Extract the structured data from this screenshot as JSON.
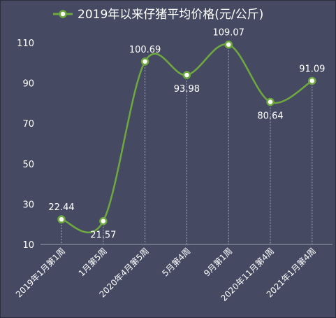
{
  "chart_data": {
    "type": "line",
    "title": "2019年以来仔猪平均价格(元/公斤)",
    "categories": [
      "2019年1月第1周",
      "1月第5周",
      "2020年4月第5周",
      "5月第4周",
      "9月第1周",
      "2020年11月第4周",
      "2021年1月第4周"
    ],
    "series": [
      {
        "name": "2019年以来仔猪平均价格(元/公斤)",
        "values": [
          22.44,
          21.57,
          100.69,
          93.98,
          109.07,
          80.64,
          91.09
        ]
      }
    ],
    "value_labels": [
      "22.44",
      "21.57",
      "100.69",
      "93.98",
      "109.07",
      "80.64",
      "91.09"
    ],
    "label_positions": [
      "above",
      "below",
      "above",
      "below",
      "above",
      "below",
      "above"
    ],
    "y_ticks": [
      "10",
      "30",
      "50",
      "70",
      "90",
      "110"
    ],
    "ylim": [
      10,
      110
    ],
    "xlabel": "",
    "ylabel": "",
    "grid": false,
    "drop_lines": true,
    "smooth": true,
    "legend_position": "top-center",
    "colors": {
      "background": "#454a62",
      "line": "#6ea83f",
      "marker_fill": "#ffffff",
      "axis": "#9a9db0",
      "drop_line": "#a7aab8",
      "text": "#ffffff"
    }
  }
}
